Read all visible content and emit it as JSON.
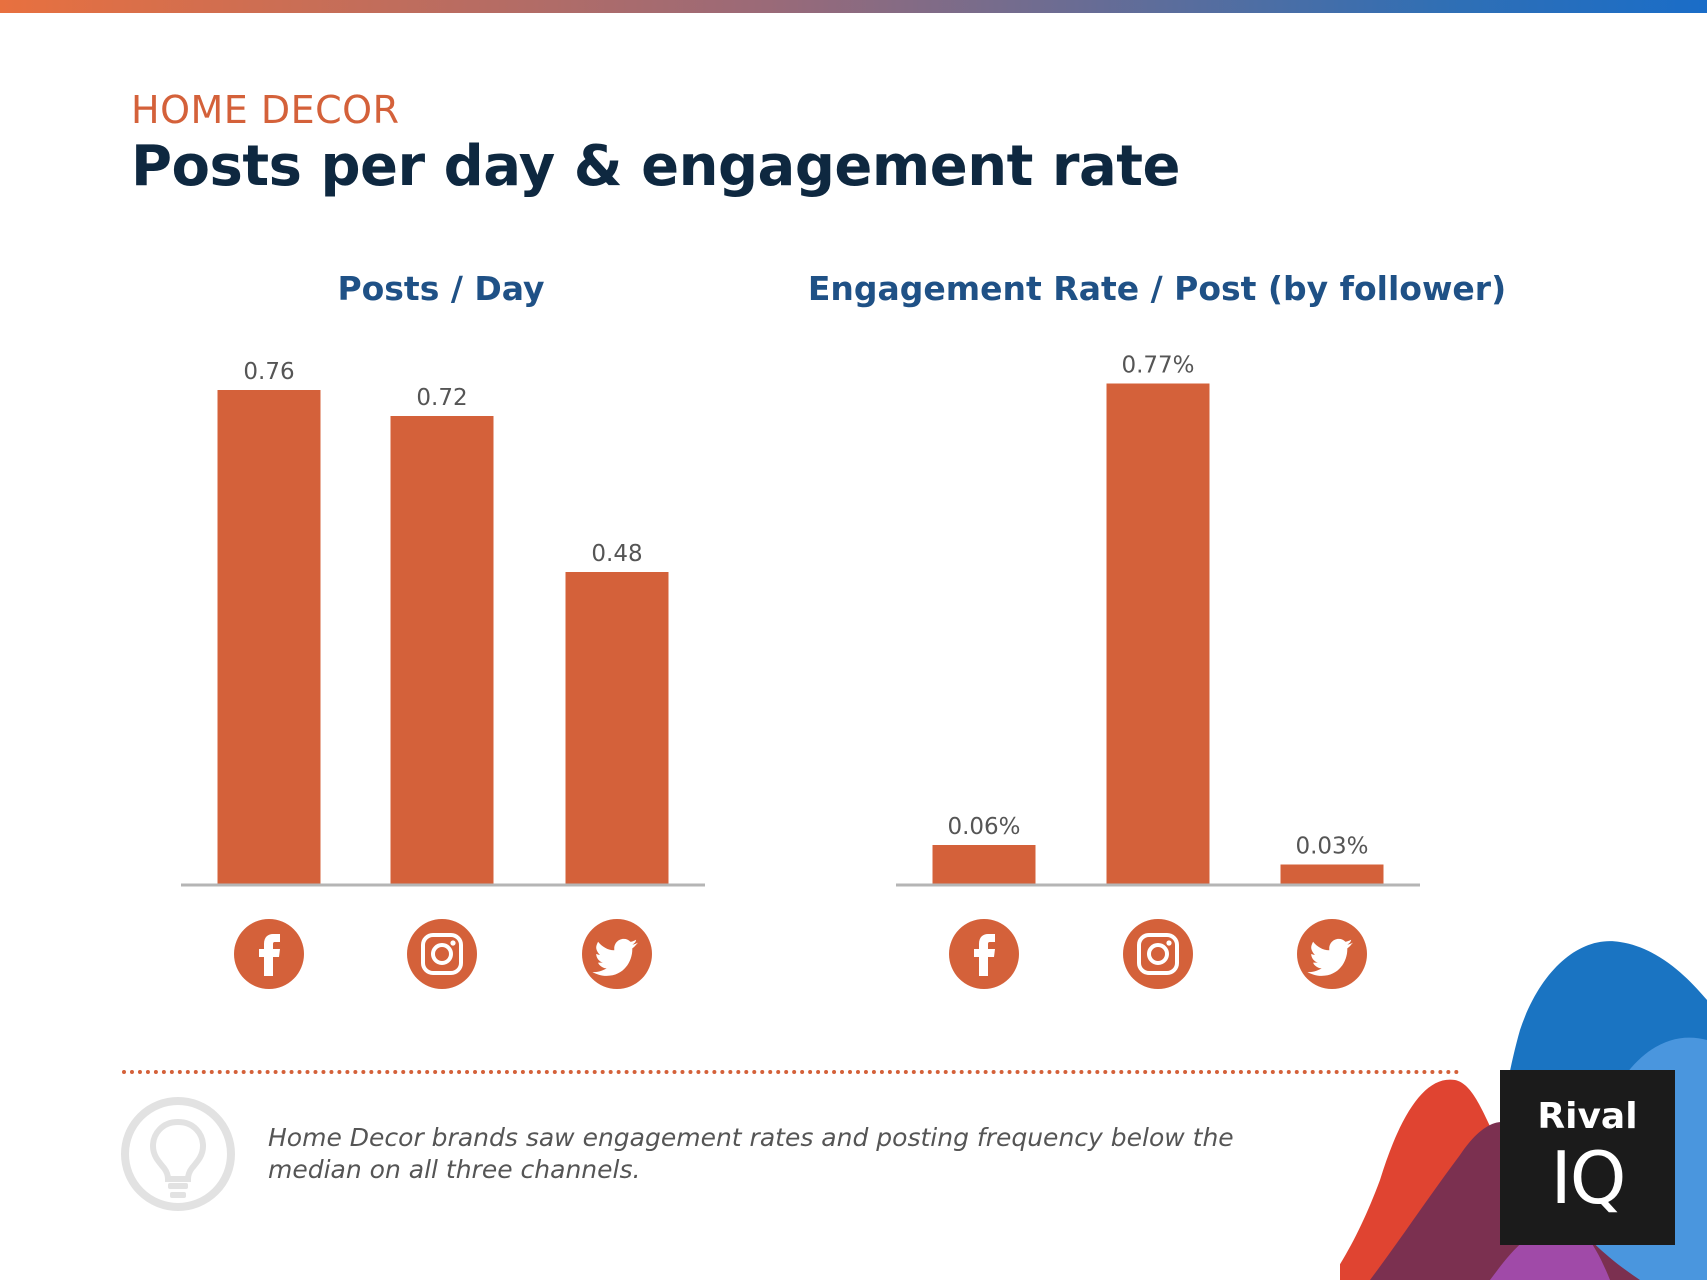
{
  "header": {
    "eyebrow": "HOME DECOR",
    "title": "Posts per day & engagement rate"
  },
  "colors": {
    "bar": "#d4613a",
    "title": "#0e2840",
    "chart_title": "#1f5186",
    "axis": "#b5b5b5"
  },
  "chart_data": [
    {
      "type": "bar",
      "title": "Posts / Day",
      "categories": [
        "Facebook",
        "Instagram",
        "Twitter"
      ],
      "category_icons": [
        "facebook-icon",
        "instagram-icon",
        "twitter-icon"
      ],
      "values": [
        0.76,
        0.72,
        0.48
      ],
      "value_labels": [
        "0.76",
        "0.72",
        "0.48"
      ],
      "ylim": [
        0,
        0.8
      ],
      "grid": false,
      "xlabel": "",
      "ylabel": ""
    },
    {
      "type": "bar",
      "title": "Engagement Rate / Post (by follower)",
      "categories": [
        "Facebook",
        "Instagram",
        "Twitter"
      ],
      "category_icons": [
        "facebook-icon",
        "instagram-icon",
        "twitter-icon"
      ],
      "values": [
        0.06,
        0.77,
        0.03
      ],
      "value_labels": [
        "0.06%",
        "0.77%",
        "0.03%"
      ],
      "ylim": [
        0,
        0.8
      ],
      "grid": false,
      "xlabel": "",
      "ylabel": ""
    }
  ],
  "footer": {
    "note": "Home Decor brands saw engagement rates and posting frequency below the median on all three channels.",
    "icon": "lightbulb-icon"
  },
  "logo": {
    "line1": "Rival",
    "line2": "IQ"
  }
}
